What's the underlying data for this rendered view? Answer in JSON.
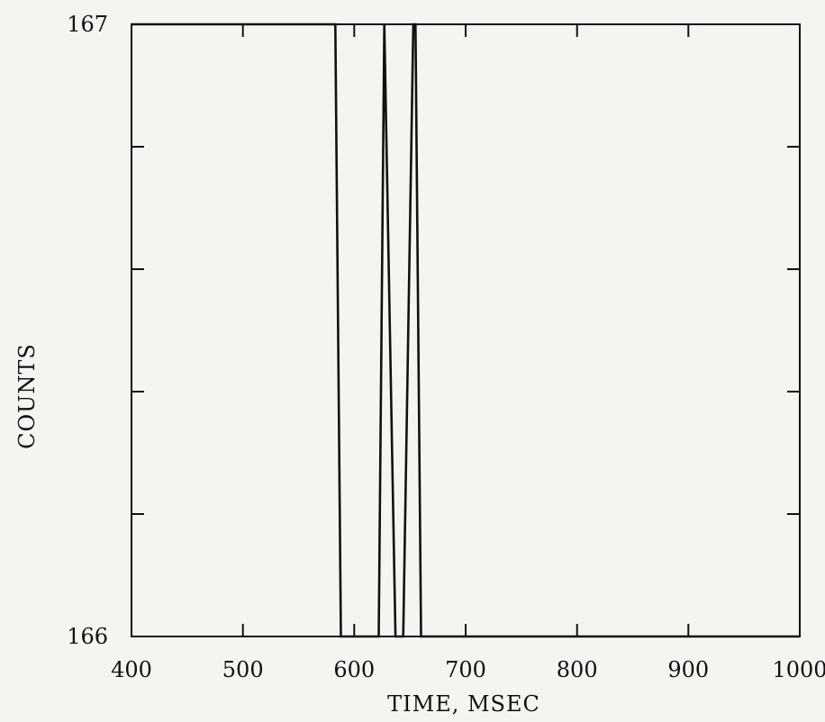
{
  "chart_data": {
    "type": "line",
    "title": "",
    "xlabel": "TIME, MSEC",
    "ylabel": "COUNTS",
    "xlim": [
      400,
      1000
    ],
    "ylim": [
      166,
      167
    ],
    "x_ticks": [
      400,
      500,
      600,
      700,
      800,
      900,
      1000
    ],
    "x_tick_labels": [
      "400",
      "500",
      "600",
      "700",
      "800",
      "900",
      "1000"
    ],
    "y_tick_labels": [
      "166",
      "167"
    ],
    "y_minor_ticks": [
      166.2,
      166.4,
      166.6,
      166.8
    ],
    "grid": false,
    "colors": {
      "line": "#111111",
      "axes": "#111111",
      "background": "#f4f4f1"
    },
    "series": [
      {
        "x": [
          400,
          583,
          588,
          622,
          627,
          637,
          644,
          653,
          655,
          660,
          1000
        ],
        "y": [
          167,
          167,
          166,
          166,
          167,
          166,
          166,
          167,
          167,
          166,
          166
        ]
      }
    ]
  }
}
